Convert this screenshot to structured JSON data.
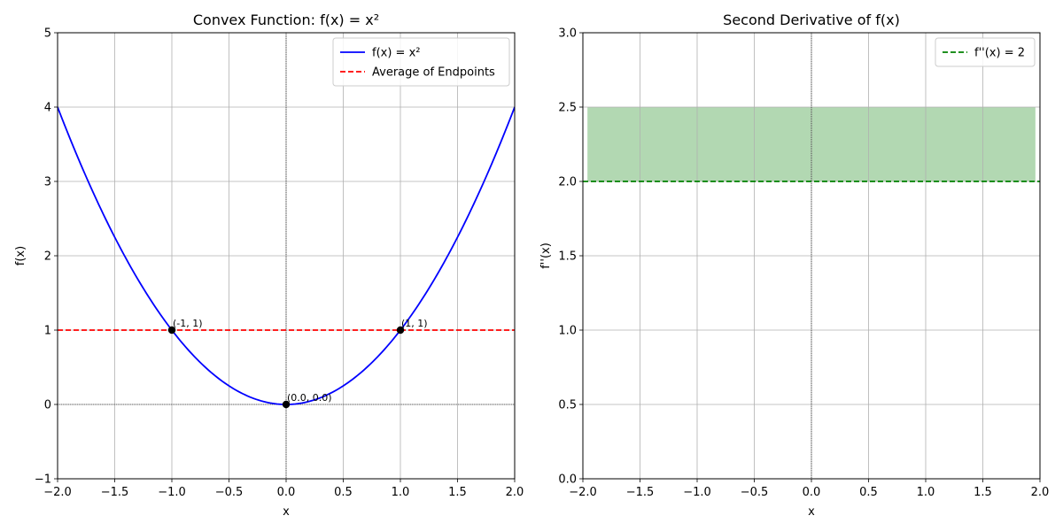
{
  "chart_data": [
    {
      "type": "line",
      "title": "Convex Function: f(x) = x²",
      "xlabel": "x",
      "ylabel": "f(x)",
      "xlim": [
        -2.0,
        2.0
      ],
      "ylim": [
        -1,
        5
      ],
      "xticks": [
        -2.0,
        -1.5,
        -1.0,
        -0.5,
        0.0,
        0.5,
        1.0,
        1.5,
        2.0
      ],
      "xtick_labels": [
        "−2.0",
        "−1.5",
        "−1.0",
        "−0.5",
        "0.0",
        "0.5",
        "1.0",
        "1.5",
        "2.0"
      ],
      "yticks": [
        -1,
        0,
        1,
        2,
        3,
        4,
        5
      ],
      "ytick_labels": [
        "−1",
        "0",
        "1",
        "2",
        "3",
        "4",
        "5"
      ],
      "grid": true,
      "legend": "top-right",
      "series": [
        {
          "name": "f(x) = x²",
          "style": "solid",
          "color": "#0000ff",
          "function": "x^2",
          "x_range": [
            -2,
            2
          ]
        },
        {
          "name": "Average of Endpoints",
          "style": "dashed",
          "color": "#ff0000",
          "function": "1",
          "x_range": [
            -2,
            2
          ]
        }
      ],
      "points": [
        {
          "x": -1,
          "y": 1,
          "label": "(-1, 1)"
        },
        {
          "x": 1,
          "y": 1,
          "label": "(1, 1)"
        },
        {
          "x": 0,
          "y": 0,
          "label": "(0.0, 0.0)"
        }
      ]
    },
    {
      "type": "line",
      "title": "Second Derivative of f(x)",
      "xlabel": "x",
      "ylabel": "f''(x)",
      "xlim": [
        -2.0,
        2.0
      ],
      "ylim": [
        0.0,
        3.0
      ],
      "xticks": [
        -2.0,
        -1.5,
        -1.0,
        -0.5,
        0.0,
        0.5,
        1.0,
        1.5,
        2.0
      ],
      "xtick_labels": [
        "−2.0",
        "−1.5",
        "−1.0",
        "−0.5",
        "0.0",
        "0.5",
        "1.0",
        "1.5",
        "2.0"
      ],
      "yticks": [
        0.0,
        0.5,
        1.0,
        1.5,
        2.0,
        2.5,
        3.0
      ],
      "ytick_labels": [
        "0.0",
        "0.5",
        "1.0",
        "1.5",
        "2.0",
        "2.5",
        "3.0"
      ],
      "grid": true,
      "legend": "top-right",
      "series": [
        {
          "name": "f''(x) = 2",
          "style": "dashed",
          "color": "#008000",
          "function": "2",
          "x_range": [
            -2,
            2
          ]
        }
      ],
      "fill": {
        "x_range": [
          -1.96,
          1.96
        ],
        "y_range": [
          2.0,
          2.5
        ],
        "color": "#b2d8b2"
      }
    }
  ]
}
